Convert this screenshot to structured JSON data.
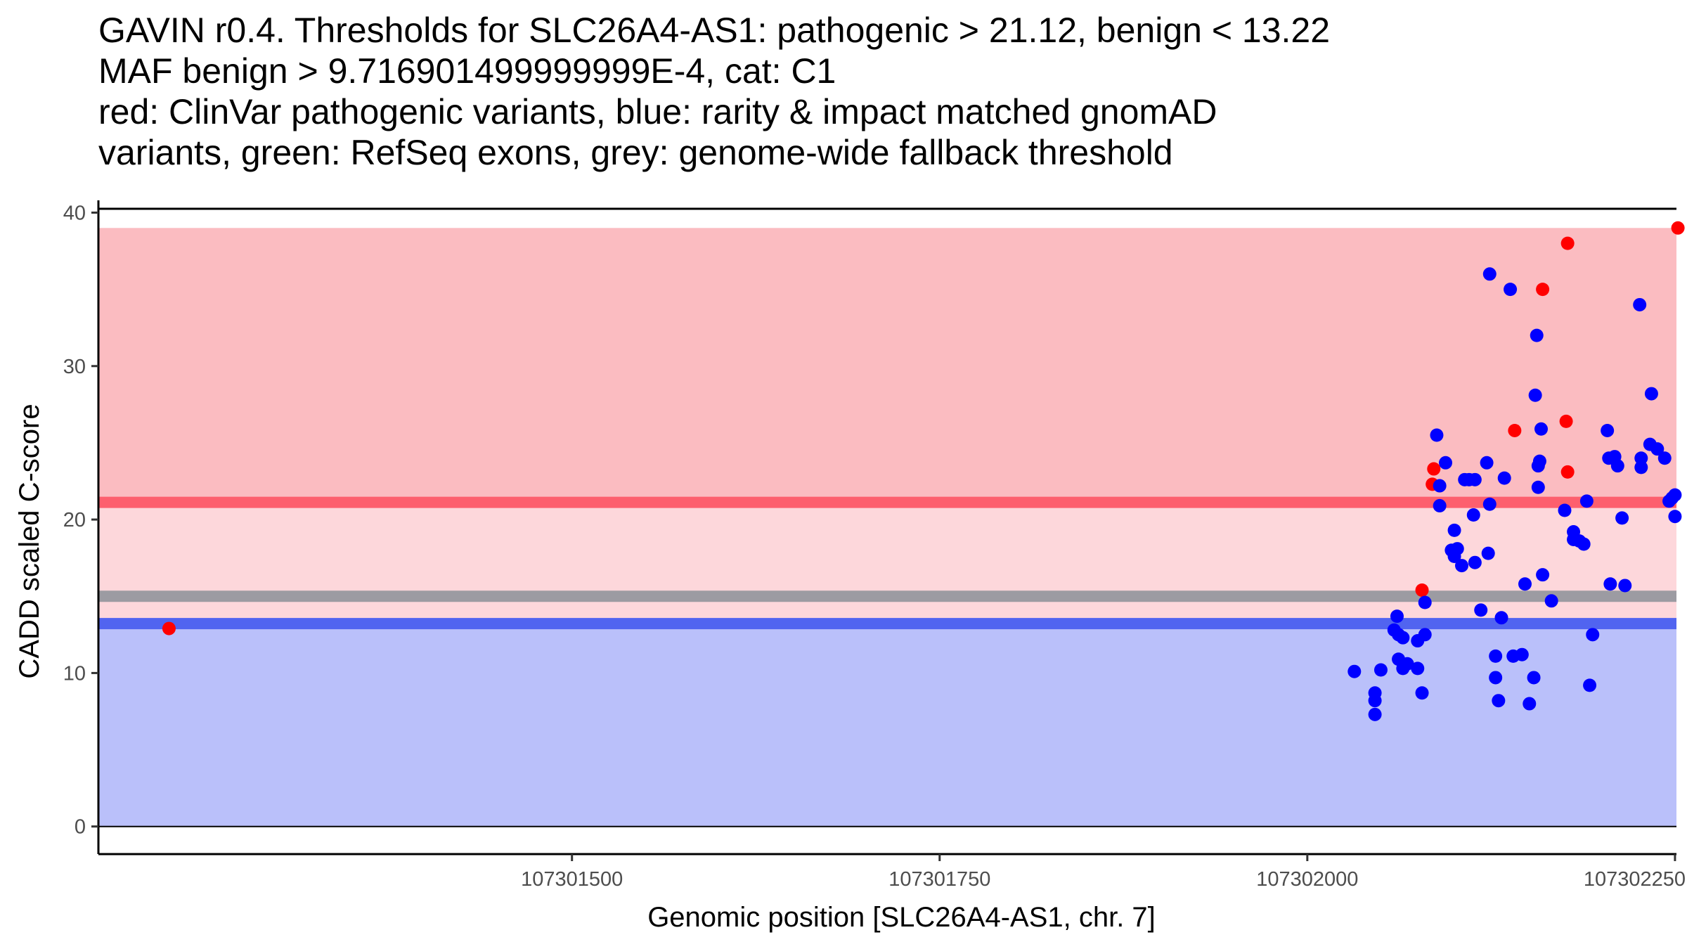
{
  "title_lines": [
    "GAVIN r0.4. Thresholds for SLC26A4-AS1: pathogenic > 21.12, benign < 13.22",
    "MAF benign > 9.716901499999999E-4, cat: C1",
    "red: ClinVar pathogenic variants, blue: rarity & impact matched gnomAD",
    "variants, green: RefSeq exons, grey: genome-wide fallback threshold"
  ],
  "chart_data": {
    "type": "scatter",
    "xlabel": "Genomic position [SLC26A4-AS1, chr. 7]",
    "ylabel": "CADD scaled C-score",
    "xlim": [
      107301178,
      107302251
    ],
    "ylim": [
      -1.8,
      40.8
    ],
    "x_ticks": [
      107301500,
      107301750,
      107302000,
      107302250
    ],
    "y_ticks": [
      0,
      10,
      20,
      30,
      40
    ],
    "grid": false,
    "bands": [
      {
        "name": "pathogenic region",
        "from": 21.12,
        "to": 39,
        "color": "#fbbcc1"
      },
      {
        "name": "VUS region",
        "from": 13.22,
        "to": 21.12,
        "color": "#fdd7db"
      },
      {
        "name": "benign region",
        "from": 0,
        "to": 13.22,
        "color": "#bac0fa"
      }
    ],
    "threshold_lines": [
      {
        "name": "pathogenic threshold",
        "value": 21.12,
        "color": "#fd5f6e"
      },
      {
        "name": "genome-wide fallback threshold",
        "value": 15.0,
        "color": "#9c9ba2"
      },
      {
        "name": "benign threshold",
        "value": 13.22,
        "color": "#5164f0"
      }
    ],
    "series": [
      {
        "name": "ClinVar pathogenic variants",
        "color": "#ff0000",
        "points": [
          [
            107301226,
            12.9
          ],
          [
            107302078,
            15.4
          ],
          [
            107302085,
            22.3
          ],
          [
            107302086,
            23.3
          ],
          [
            107302141,
            25.8
          ],
          [
            107302160,
            35.0
          ],
          [
            107302177,
            38.0
          ],
          [
            107302176,
            26.4
          ],
          [
            107302177,
            23.1
          ],
          [
            107302252,
            39.0
          ]
        ]
      },
      {
        "name": "rarity & impact matched gnomAD variants",
        "color": "#0000ff",
        "points": [
          [
            107302032,
            10.1
          ],
          [
            107302046,
            8.7
          ],
          [
            107302046,
            8.2
          ],
          [
            107302046,
            7.3
          ],
          [
            107302050,
            10.2
          ],
          [
            107302059,
            12.8
          ],
          [
            107302061,
            13.7
          ],
          [
            107302062,
            12.5
          ],
          [
            107302062,
            10.9
          ],
          [
            107302065,
            12.3
          ],
          [
            107302065,
            10.3
          ],
          [
            107302068,
            10.6
          ],
          [
            107302075,
            10.3
          ],
          [
            107302075,
            12.1
          ],
          [
            107302078,
            8.7
          ],
          [
            107302080,
            12.5
          ],
          [
            107302080,
            14.6
          ],
          [
            107302088,
            25.5
          ],
          [
            107302090,
            22.2
          ],
          [
            107302090,
            20.9
          ],
          [
            107302094,
            23.7
          ],
          [
            107302098,
            18.0
          ],
          [
            107302100,
            19.3
          ],
          [
            107302100,
            17.6
          ],
          [
            107302102,
            18.1
          ],
          [
            107302105,
            17.0
          ],
          [
            107302107,
            22.6
          ],
          [
            107302110,
            22.6
          ],
          [
            107302113,
            20.3
          ],
          [
            107302114,
            22.6
          ],
          [
            107302114,
            17.2
          ],
          [
            107302118,
            14.1
          ],
          [
            107302122,
            23.7
          ],
          [
            107302123,
            17.8
          ],
          [
            107302124,
            21.0
          ],
          [
            107302124,
            36.0
          ],
          [
            107302128,
            11.1
          ],
          [
            107302128,
            9.7
          ],
          [
            107302130,
            8.2
          ],
          [
            107302132,
            13.6
          ],
          [
            107302134,
            22.7
          ],
          [
            107302138,
            35.0
          ],
          [
            107302140,
            11.1
          ],
          [
            107302146,
            11.2
          ],
          [
            107302148,
            15.8
          ],
          [
            107302151,
            8.0
          ],
          [
            107302154,
            9.7
          ],
          [
            107302156,
            32.0
          ],
          [
            107302155,
            28.1
          ],
          [
            107302157,
            23.5
          ],
          [
            107302157,
            22.1
          ],
          [
            107302158,
            23.8
          ],
          [
            107302159,
            25.9
          ],
          [
            107302160,
            16.4
          ],
          [
            107302166,
            14.7
          ],
          [
            107302175,
            20.6
          ],
          [
            107302181,
            19.2
          ],
          [
            107302181,
            18.7
          ],
          [
            107302185,
            18.6
          ],
          [
            107302188,
            18.4
          ],
          [
            107302190,
            21.2
          ],
          [
            107302192,
            9.2
          ],
          [
            107302194,
            12.5
          ],
          [
            107302204,
            25.8
          ],
          [
            107302205,
            24.0
          ],
          [
            107302206,
            15.8
          ],
          [
            107302209,
            24.1
          ],
          [
            107302211,
            23.5
          ],
          [
            107302214,
            20.1
          ],
          [
            107302216,
            15.7
          ],
          [
            107302226,
            34.0
          ],
          [
            107302227,
            24.0
          ],
          [
            107302227,
            23.4
          ],
          [
            107302233,
            24.9
          ],
          [
            107302234,
            28.2
          ],
          [
            107302238,
            24.6
          ],
          [
            107302243,
            24.0
          ],
          [
            107302246,
            21.2
          ],
          [
            107302248,
            21.4
          ],
          [
            107302250,
            21.6
          ],
          [
            107302250,
            20.2
          ]
        ]
      }
    ]
  }
}
